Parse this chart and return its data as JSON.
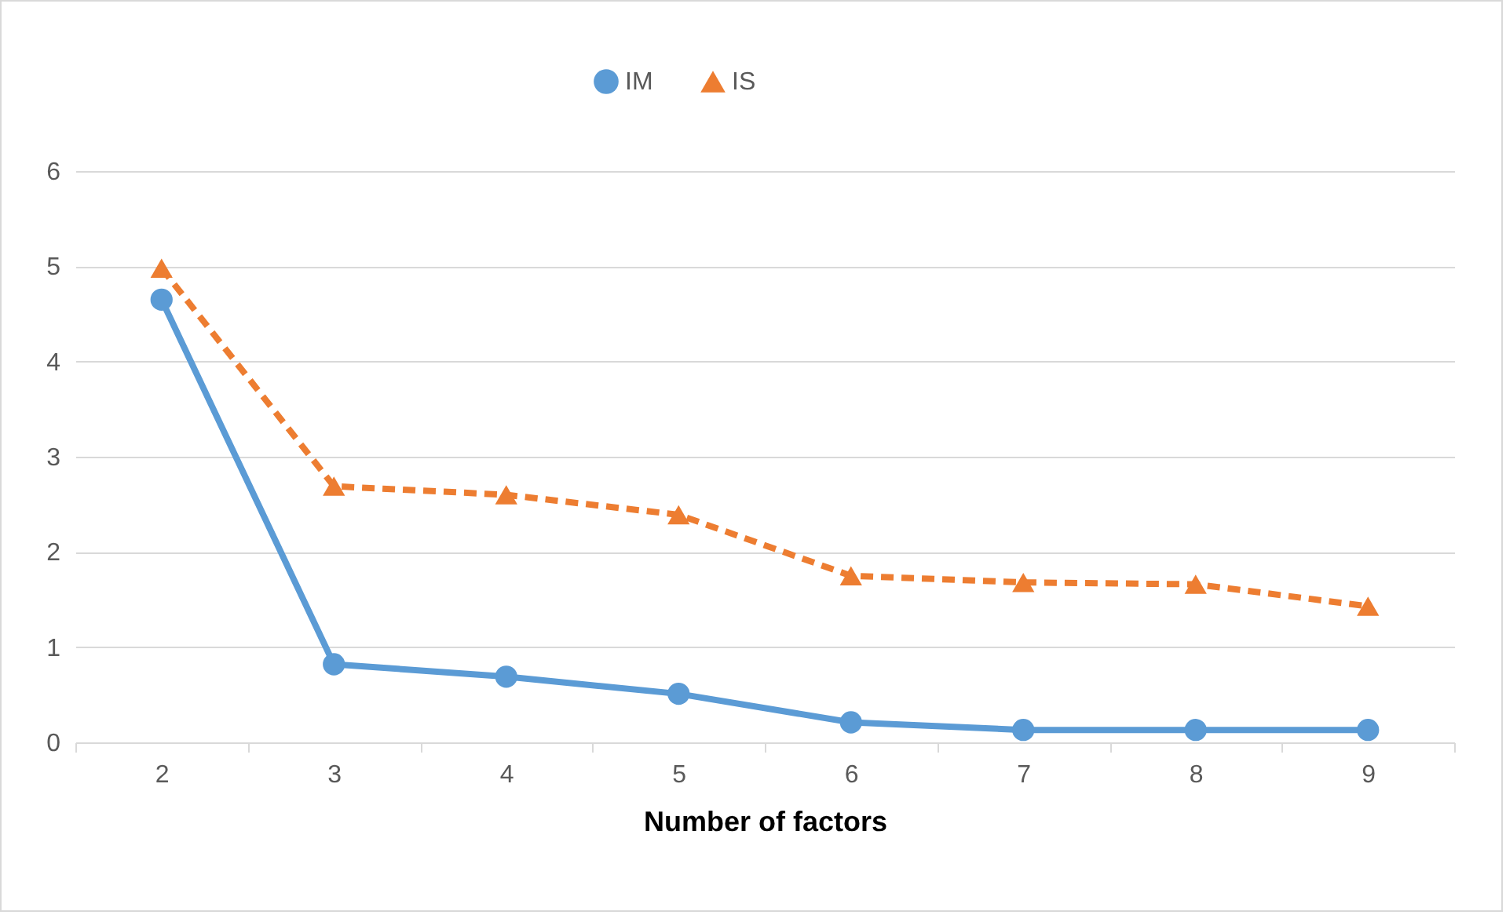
{
  "chart_data": {
    "type": "line",
    "xlabel": "Number of factors",
    "categories": [
      "2",
      "3",
      "4",
      "5",
      "6",
      "7",
      "8",
      "9"
    ],
    "series": [
      {
        "name": "IM",
        "color": "#5b9bd5",
        "marker": "circle",
        "line_style": "solid",
        "values": [
          4.65,
          0.82,
          0.69,
          0.51,
          0.21,
          0.13,
          0.13,
          0.13
        ]
      },
      {
        "name": "IS",
        "color": "#ed7d31",
        "marker": "triangle",
        "line_style": "dashed",
        "values": [
          4.98,
          2.69,
          2.6,
          2.39,
          1.75,
          1.68,
          1.66,
          1.43
        ]
      }
    ],
    "ylim": [
      0,
      6
    ],
    "yticks": [
      0,
      1,
      2,
      3,
      4,
      5,
      6
    ],
    "grid": "y",
    "legend": "top"
  }
}
